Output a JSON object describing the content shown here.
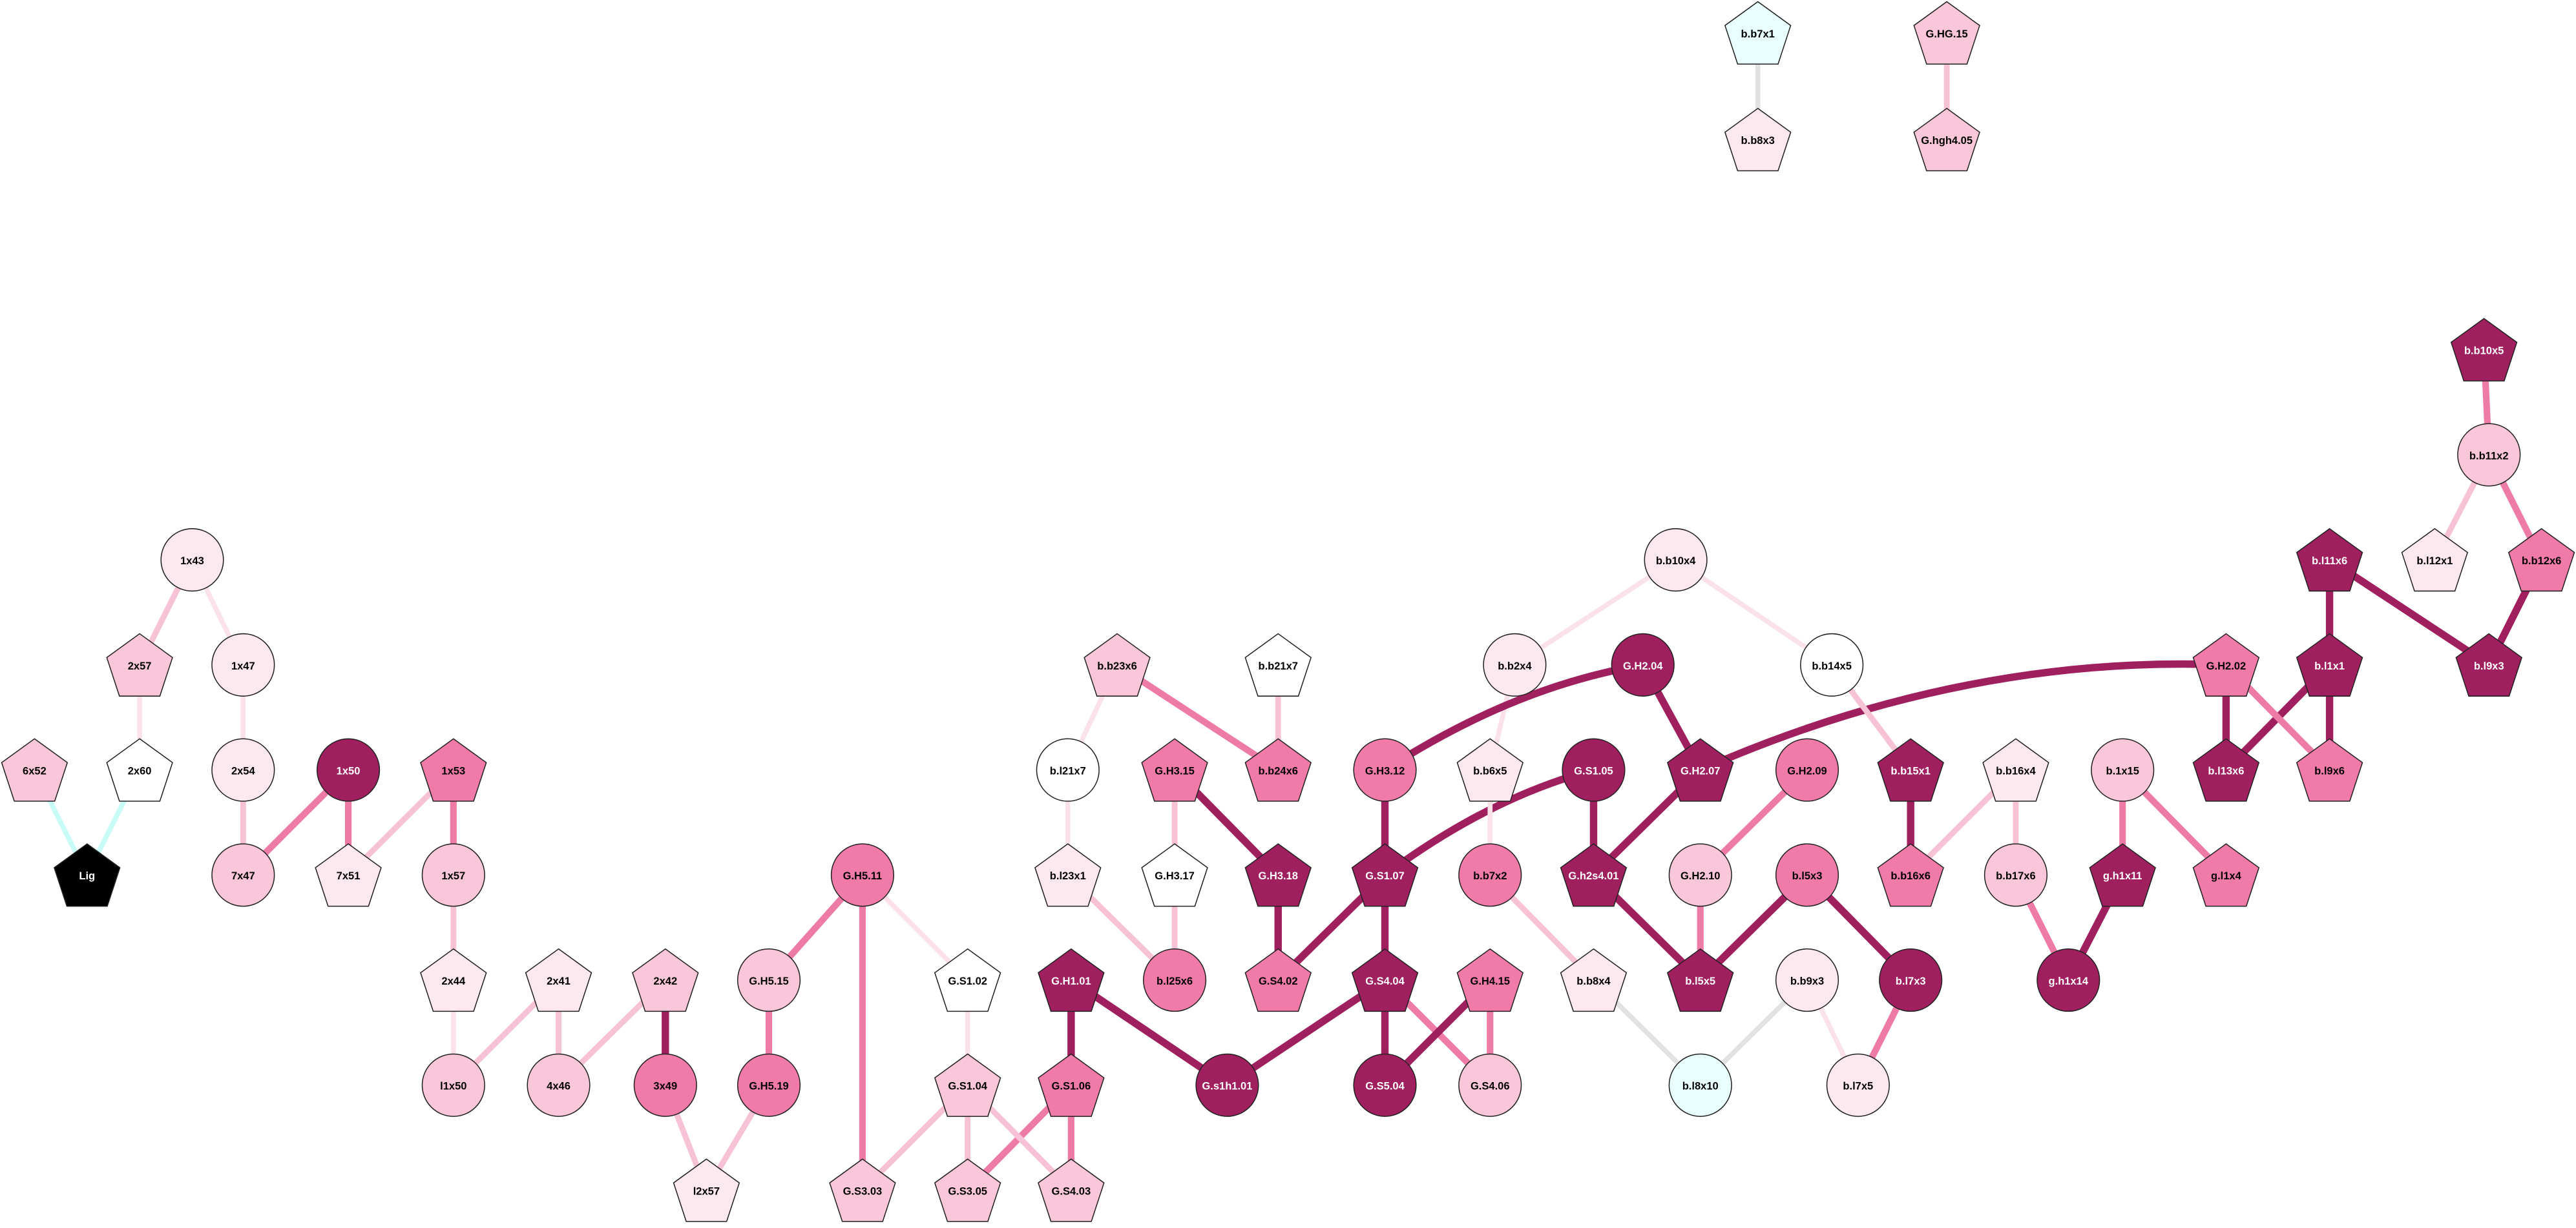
{
  "nodes": [
    "b.b7x1",
    "b.b8x3",
    "G.HG.15",
    "G.hgh4.05",
    "b.b10x5",
    "b.b11x2",
    "b.l12x1",
    "b.b12x6",
    "b.l11x6",
    "b.l9x3",
    "b.l1x1",
    "G.H2.02",
    "b.l13x6",
    "b.l9x6",
    "b.1x15",
    "g.h1x11",
    "g.l1x4",
    "g.h1x14",
    "b.b16x4",
    "b.b17x6",
    "b.b16x6",
    "b.b15x1",
    "b.b14x5",
    "b.b10x4",
    "b.b2x4",
    "G.H2.04",
    "G.H2.07",
    "G.H2.09",
    "G.H2.10",
    "b.l5x3",
    "b.l7x3",
    "b.l5x5",
    "b.b9x3",
    "b.l7x5",
    "b.l8x10",
    "b.b8x4",
    "G.S1.05",
    "G.h2s4.01",
    "b.b6x5",
    "b.b7x2",
    "G.H4.15",
    "G.S4.06",
    "G.S5.04",
    "G.S4.04",
    "G.S1.07",
    "G.H3.12",
    "G.s1h1.01",
    "G.H1.01",
    "G.S1.06",
    "G.S4.03",
    "G.S3.05",
    "G.S1.04",
    "G.S1.02",
    "G.S3.03",
    "G.H5.11",
    "G.H5.15",
    "G.H5.19",
    "l2x57",
    "3x49",
    "2x42",
    "4x46",
    "2x41",
    "l1x50",
    "2x44",
    "1x57",
    "1x53",
    "7x51",
    "1x50",
    "7x47",
    "2x54",
    "1x47",
    "1x43",
    "2x57",
    "2x60",
    "Lig",
    "6x52",
    "b.b23x6",
    "b.b21x7",
    "b.l21x7",
    "b.l23x1",
    "b.l25x6",
    "G.H3.15",
    "G.H3.17",
    "G.H3.18",
    "b.b24x6",
    "G.S4.02"
  ]
}
